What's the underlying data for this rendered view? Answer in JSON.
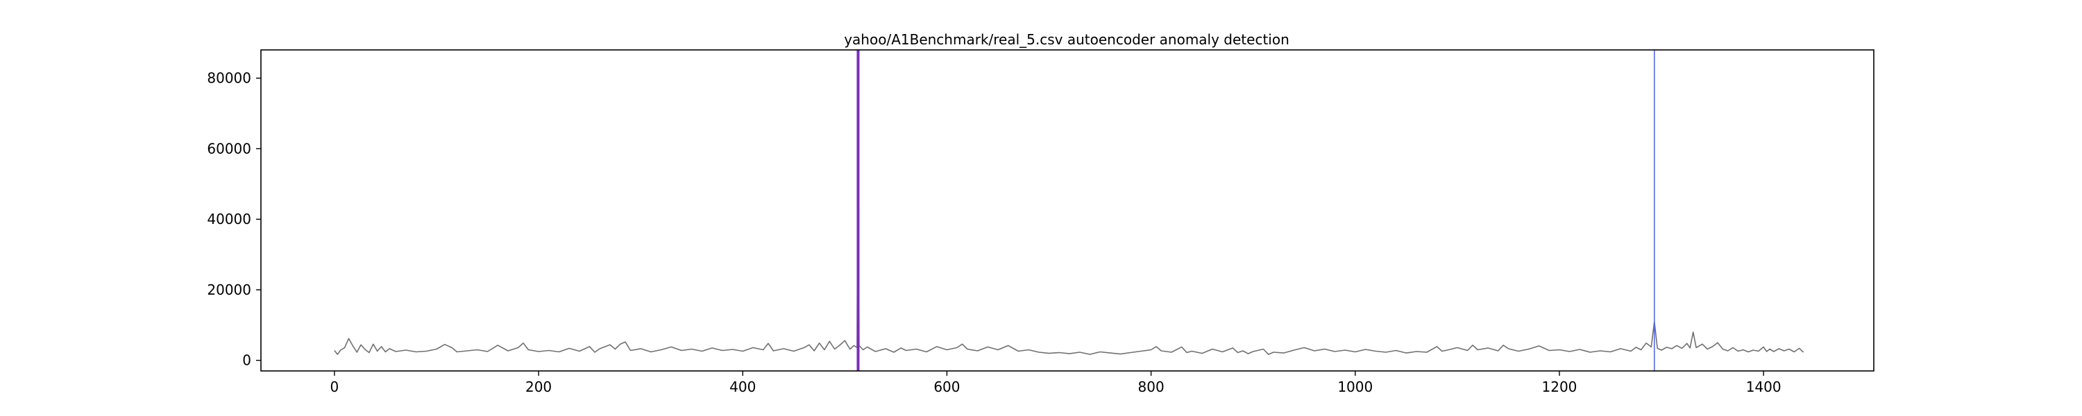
{
  "chart_data": {
    "type": "line",
    "title": "yahoo/A1Benchmark/real_5.csv autoencoder anomaly detection",
    "xlabel": "",
    "ylabel": "",
    "xlim": [
      -72,
      1508
    ],
    "ylim": [
      -3000,
      88000
    ],
    "xticks": [
      0,
      200,
      400,
      600,
      800,
      1000,
      1200,
      1400
    ],
    "yticks": [
      0,
      20000,
      40000,
      60000,
      80000
    ],
    "grid": false,
    "series": [
      {
        "color": "#707070",
        "keypoints": [
          [
            0,
            2800
          ],
          [
            3,
            1700
          ],
          [
            6,
            2900
          ],
          [
            10,
            3600
          ],
          [
            14,
            6200
          ],
          [
            18,
            4100
          ],
          [
            22,
            2300
          ],
          [
            26,
            4400
          ],
          [
            30,
            3100
          ],
          [
            34,
            2200
          ],
          [
            38,
            4600
          ],
          [
            42,
            2600
          ],
          [
            46,
            3900
          ],
          [
            50,
            2400
          ],
          [
            54,
            3300
          ],
          [
            60,
            2500
          ],
          [
            70,
            2900
          ],
          [
            80,
            2400
          ],
          [
            90,
            2600
          ],
          [
            100,
            3200
          ],
          [
            108,
            4500
          ],
          [
            115,
            3600
          ],
          [
            120,
            2400
          ],
          [
            130,
            2700
          ],
          [
            140,
            3000
          ],
          [
            150,
            2500
          ],
          [
            160,
            4300
          ],
          [
            170,
            2700
          ],
          [
            180,
            3600
          ],
          [
            185,
            4900
          ],
          [
            190,
            3000
          ],
          [
            200,
            2500
          ],
          [
            210,
            2800
          ],
          [
            220,
            2400
          ],
          [
            230,
            3400
          ],
          [
            240,
            2600
          ],
          [
            250,
            3900
          ],
          [
            255,
            2300
          ],
          [
            260,
            3300
          ],
          [
            270,
            4400
          ],
          [
            275,
            3200
          ],
          [
            280,
            4600
          ],
          [
            285,
            5200
          ],
          [
            290,
            2800
          ],
          [
            300,
            3300
          ],
          [
            310,
            2400
          ],
          [
            320,
            3000
          ],
          [
            330,
            3800
          ],
          [
            340,
            2800
          ],
          [
            350,
            3200
          ],
          [
            360,
            2600
          ],
          [
            370,
            3500
          ],
          [
            380,
            2800
          ],
          [
            390,
            3100
          ],
          [
            400,
            2600
          ],
          [
            410,
            3600
          ],
          [
            420,
            3000
          ],
          [
            425,
            4800
          ],
          [
            430,
            2700
          ],
          [
            440,
            3300
          ],
          [
            450,
            2600
          ],
          [
            460,
            3600
          ],
          [
            465,
            4400
          ],
          [
            470,
            2700
          ],
          [
            475,
            4900
          ],
          [
            480,
            3000
          ],
          [
            485,
            5400
          ],
          [
            490,
            3200
          ],
          [
            495,
            4300
          ],
          [
            500,
            5600
          ],
          [
            505,
            3200
          ],
          [
            509,
            4200
          ],
          [
            512,
            3600
          ],
          [
            513,
            88000
          ],
          [
            514,
            4200
          ],
          [
            518,
            3000
          ],
          [
            522,
            3800
          ],
          [
            530,
            2500
          ],
          [
            540,
            3300
          ],
          [
            548,
            2300
          ],
          [
            555,
            3500
          ],
          [
            560,
            2800
          ],
          [
            570,
            3200
          ],
          [
            580,
            2400
          ],
          [
            590,
            3900
          ],
          [
            600,
            3000
          ],
          [
            610,
            3600
          ],
          [
            615,
            4600
          ],
          [
            620,
            3200
          ],
          [
            630,
            2700
          ],
          [
            640,
            3800
          ],
          [
            650,
            3000
          ],
          [
            660,
            4200
          ],
          [
            670,
            2600
          ],
          [
            680,
            3000
          ],
          [
            690,
            2300
          ],
          [
            700,
            2000
          ],
          [
            710,
            2200
          ],
          [
            720,
            1900
          ],
          [
            730,
            2300
          ],
          [
            740,
            1700
          ],
          [
            750,
            2400
          ],
          [
            760,
            2100
          ],
          [
            770,
            1800
          ],
          [
            780,
            2200
          ],
          [
            790,
            2600
          ],
          [
            800,
            3000
          ],
          [
            805,
            3900
          ],
          [
            810,
            2700
          ],
          [
            820,
            2300
          ],
          [
            830,
            3800
          ],
          [
            835,
            2200
          ],
          [
            840,
            2600
          ],
          [
            850,
            2000
          ],
          [
            860,
            3200
          ],
          [
            870,
            2400
          ],
          [
            880,
            3500
          ],
          [
            885,
            2200
          ],
          [
            890,
            2700
          ],
          [
            895,
            1900
          ],
          [
            900,
            2500
          ],
          [
            910,
            3200
          ],
          [
            915,
            1700
          ],
          [
            920,
            2300
          ],
          [
            930,
            2100
          ],
          [
            940,
            2900
          ],
          [
            950,
            3600
          ],
          [
            960,
            2700
          ],
          [
            970,
            3200
          ],
          [
            980,
            2500
          ],
          [
            990,
            2900
          ],
          [
            1000,
            2400
          ],
          [
            1010,
            3100
          ],
          [
            1020,
            2600
          ],
          [
            1030,
            2300
          ],
          [
            1040,
            2800
          ],
          [
            1050,
            2100
          ],
          [
            1060,
            2500
          ],
          [
            1070,
            2300
          ],
          [
            1080,
            3900
          ],
          [
            1085,
            2600
          ],
          [
            1090,
            2900
          ],
          [
            1100,
            3600
          ],
          [
            1110,
            2800
          ],
          [
            1115,
            4300
          ],
          [
            1120,
            3000
          ],
          [
            1130,
            3500
          ],
          [
            1140,
            2700
          ],
          [
            1145,
            4300
          ],
          [
            1150,
            3300
          ],
          [
            1160,
            2600
          ],
          [
            1170,
            3200
          ],
          [
            1180,
            4100
          ],
          [
            1190,
            2800
          ],
          [
            1200,
            3000
          ],
          [
            1210,
            2500
          ],
          [
            1220,
            3100
          ],
          [
            1230,
            2300
          ],
          [
            1240,
            2700
          ],
          [
            1250,
            2400
          ],
          [
            1260,
            3300
          ],
          [
            1270,
            2600
          ],
          [
            1275,
            3700
          ],
          [
            1280,
            3000
          ],
          [
            1285,
            4900
          ],
          [
            1290,
            3800
          ],
          [
            1293,
            11000
          ],
          [
            1296,
            3400
          ],
          [
            1300,
            2900
          ],
          [
            1305,
            3700
          ],
          [
            1310,
            3300
          ],
          [
            1315,
            4200
          ],
          [
            1320,
            3400
          ],
          [
            1325,
            4800
          ],
          [
            1328,
            3500
          ],
          [
            1331,
            8000
          ],
          [
            1334,
            3600
          ],
          [
            1340,
            4600
          ],
          [
            1345,
            3200
          ],
          [
            1350,
            3900
          ],
          [
            1355,
            5000
          ],
          [
            1360,
            3200
          ],
          [
            1365,
            2700
          ],
          [
            1370,
            3600
          ],
          [
            1375,
            2600
          ],
          [
            1380,
            3000
          ],
          [
            1385,
            2400
          ],
          [
            1390,
            2900
          ],
          [
            1395,
            2600
          ],
          [
            1400,
            3800
          ],
          [
            1403,
            2500
          ],
          [
            1406,
            3200
          ],
          [
            1410,
            2500
          ],
          [
            1415,
            3300
          ],
          [
            1420,
            2700
          ],
          [
            1425,
            3200
          ],
          [
            1430,
            2400
          ],
          [
            1435,
            3400
          ],
          [
            1439,
            2300
          ]
        ]
      }
    ],
    "anomaly_lines": [
      {
        "x": 513,
        "color": "#7b2db8",
        "emphasis": "thick"
      },
      {
        "x": 1293,
        "color": "#5566ee",
        "emphasis": "thin"
      }
    ]
  }
}
